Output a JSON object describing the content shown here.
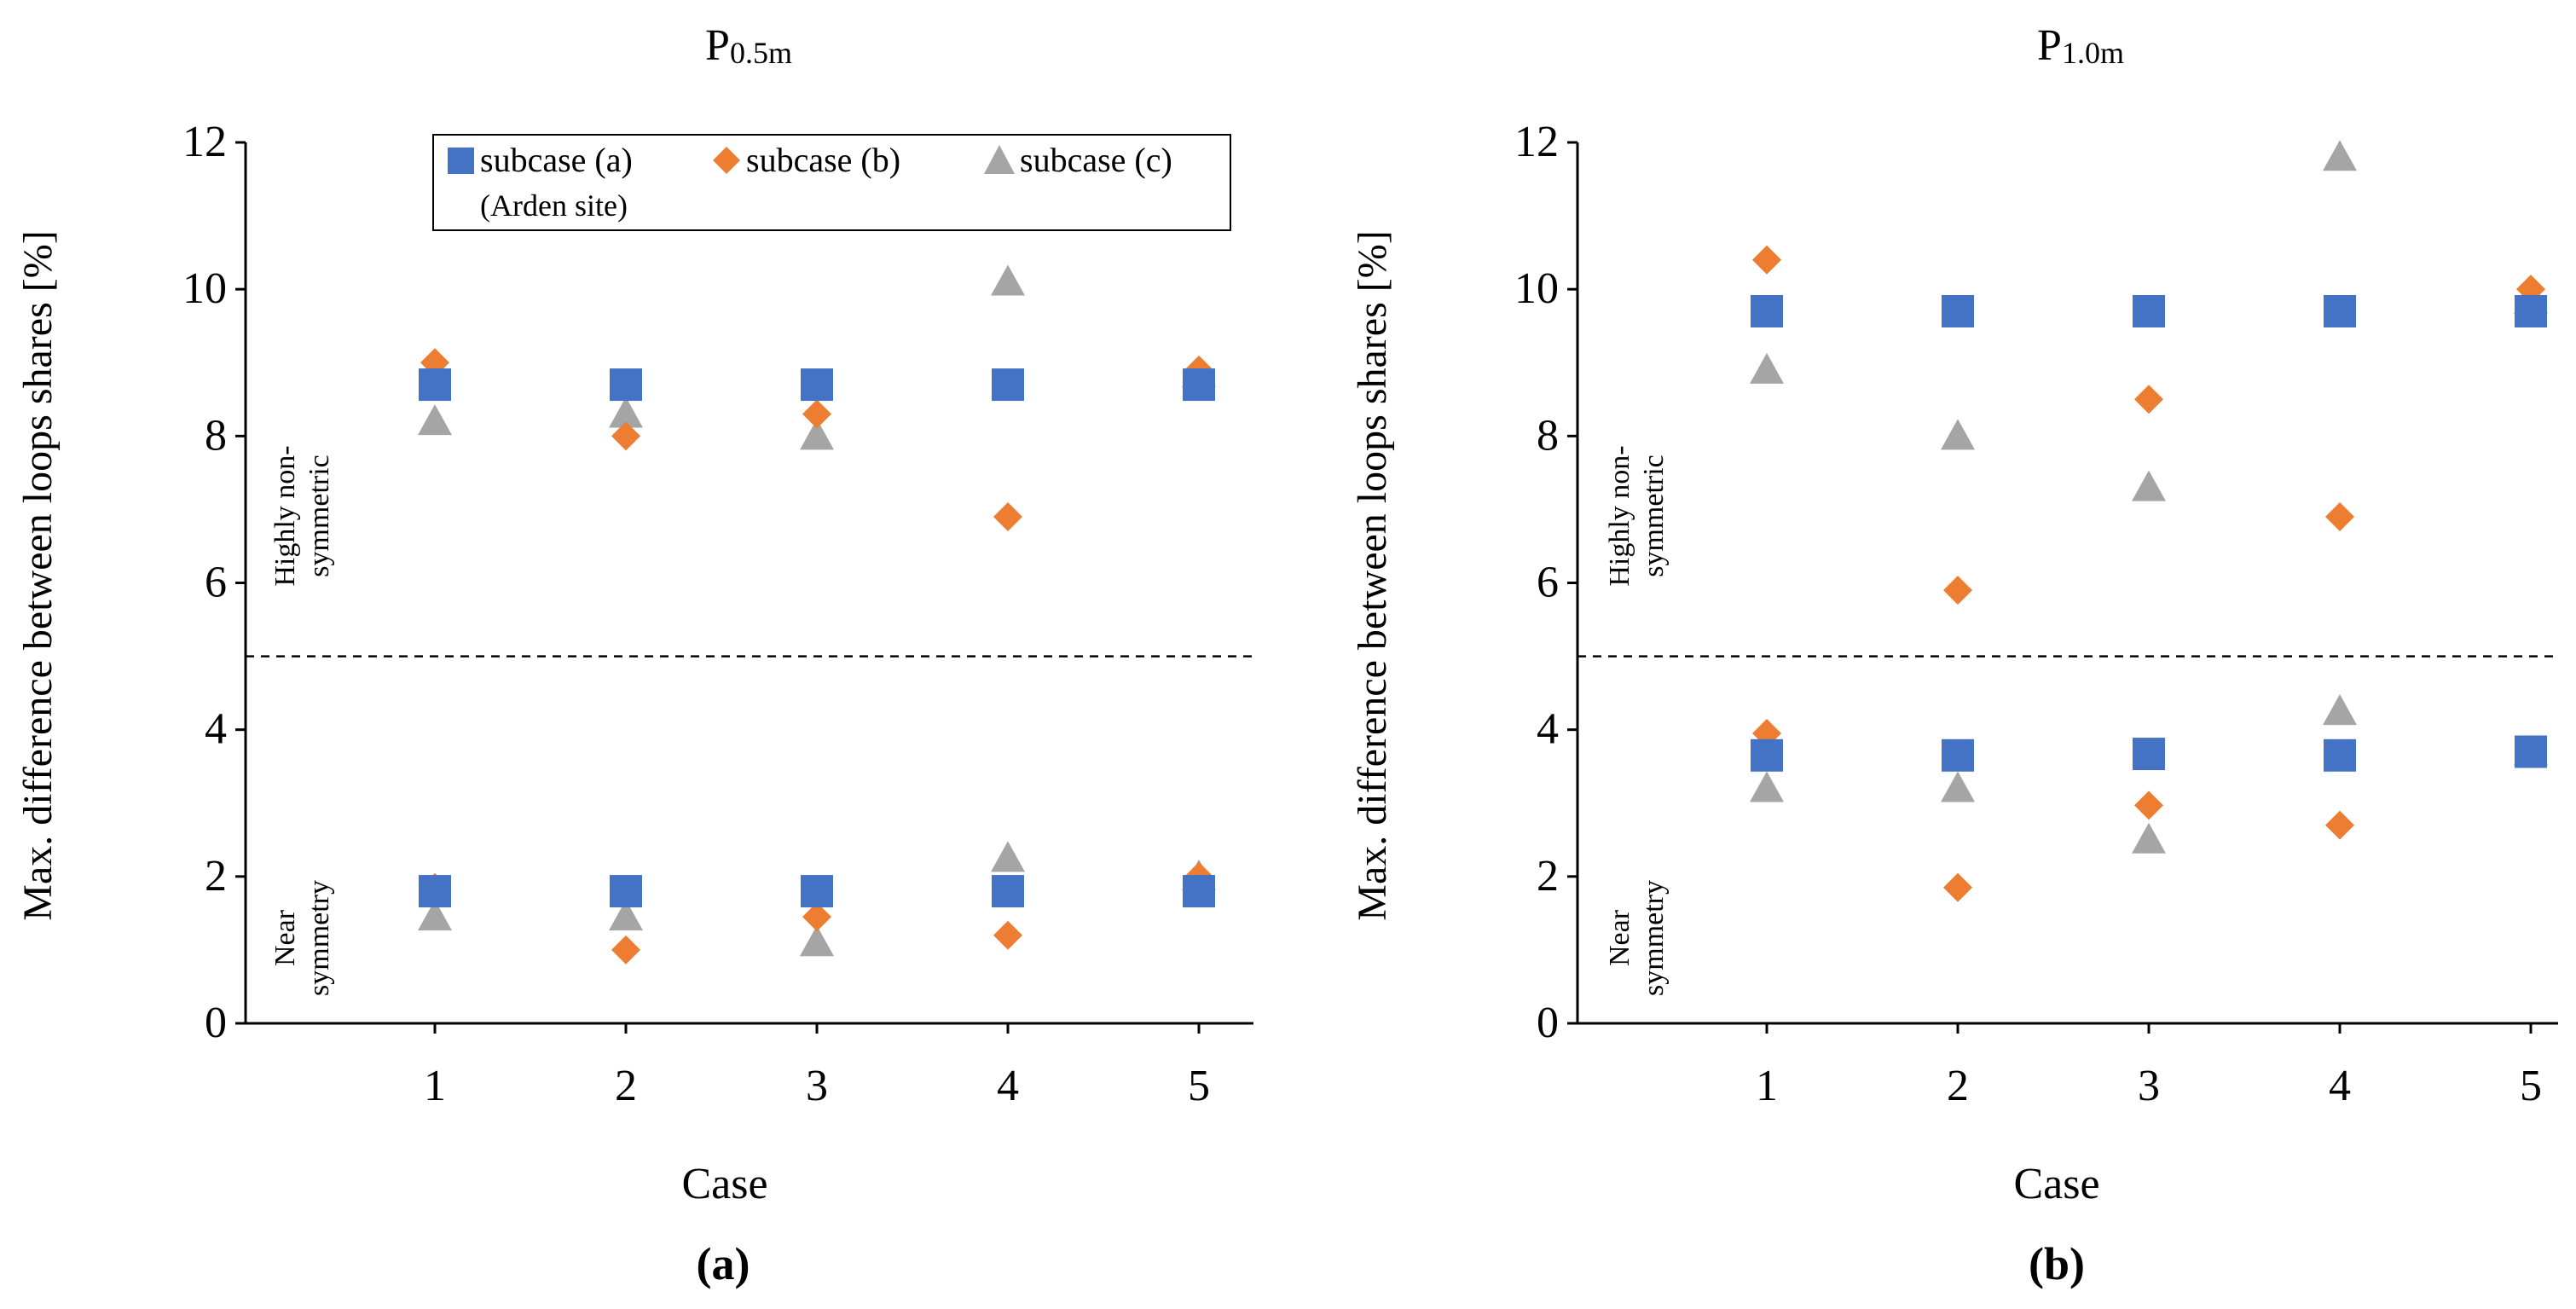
{
  "colors": {
    "subcase_a": "#4472C4",
    "subcase_b": "#ED7D31",
    "subcase_c": "#A5A5A5",
    "axis": "#000000"
  },
  "legend": {
    "a_label": "subcase (a)",
    "a_sublabel": "(Arden site)",
    "b_label": "subcase (b)",
    "c_label": "subcase (c)"
  },
  "chart_data": [
    {
      "type": "scatter",
      "title_main": "P",
      "title_sub": "0.5m",
      "panel_label": "(a)",
      "xlabel": "Case",
      "ylabel": "Max. difference between loops shares [%]",
      "categories": [
        "1",
        "2",
        "3",
        "4",
        "5"
      ],
      "ylim": [
        0,
        12
      ],
      "yticks": [
        "0",
        "2",
        "4",
        "6",
        "8",
        "10",
        "12"
      ],
      "threshold": 5,
      "region_upper": [
        "Highly  non-",
        "symmetric"
      ],
      "region_lower": [
        "Near",
        "symmetry"
      ],
      "series": [
        {
          "name": "subcase (a)",
          "marker": "square",
          "groups": [
            [
              8.7,
              8.7,
              8.7,
              8.7,
              8.7
            ],
            [
              1.8,
              1.8,
              1.8,
              1.8,
              1.8
            ]
          ]
        },
        {
          "name": "subcase (b)",
          "marker": "diamond",
          "groups": [
            [
              9.0,
              8.0,
              8.3,
              6.9,
              8.9
            ],
            [
              1.85,
              1.0,
              1.45,
              1.2,
              2.0
            ]
          ]
        },
        {
          "name": "subcase (c)",
          "marker": "triangle",
          "groups": [
            [
              8.2,
              8.3,
              8.0,
              10.1,
              8.85
            ],
            [
              1.45,
              1.45,
              1.1,
              2.25,
              2.0
            ]
          ]
        }
      ]
    },
    {
      "type": "scatter",
      "title_main": "P",
      "title_sub": "1.0m",
      "panel_label": "(b)",
      "xlabel": "Case",
      "ylabel": "Max. difference between loops shares [%]",
      "categories": [
        "1",
        "2",
        "3",
        "4",
        "5"
      ],
      "ylim": [
        0,
        12
      ],
      "yticks": [
        "0",
        "2",
        "4",
        "6",
        "8",
        "10",
        "12"
      ],
      "threshold": 5,
      "region_upper": [
        "Highly  non-",
        "symmetric"
      ],
      "region_lower": [
        "Near",
        "symmetry"
      ],
      "series": [
        {
          "name": "subcase (a)",
          "marker": "square",
          "groups": [
            [
              9.7,
              9.7,
              9.7,
              9.7,
              9.7
            ],
            [
              3.65,
              3.65,
              3.67,
              3.65,
              3.7
            ]
          ]
        },
        {
          "name": "subcase (b)",
          "marker": "diamond",
          "groups": [
            [
              10.4,
              5.9,
              8.5,
              6.9,
              10.0
            ],
            [
              3.95,
              1.85,
              2.97,
              2.7,
              3.7
            ]
          ]
        },
        {
          "name": "subcase (c)",
          "marker": "triangle",
          "groups": [
            [
              8.9,
              8.0,
              7.3,
              11.8,
              9.85
            ],
            [
              3.2,
              3.2,
              2.5,
              4.25,
              3.7
            ]
          ]
        }
      ]
    }
  ]
}
